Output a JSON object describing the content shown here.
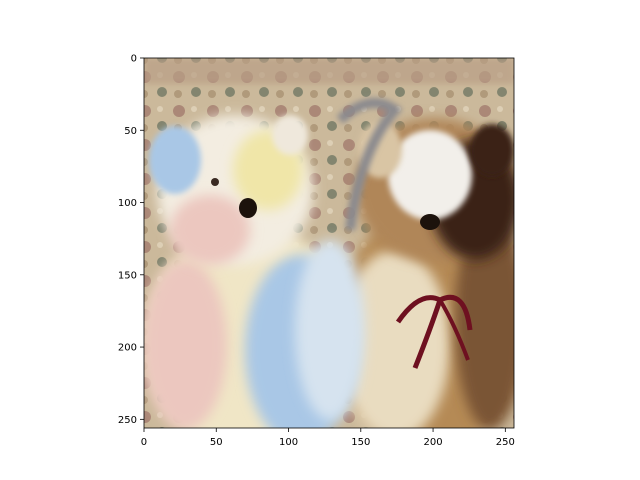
{
  "chart_data": {
    "type": "image",
    "title": "",
    "xlabel": "",
    "ylabel": "",
    "xlim": [
      0,
      256
    ],
    "ylim": [
      256,
      0
    ],
    "x_ticks": [
      {
        "value": 0,
        "label": "0"
      },
      {
        "value": 50,
        "label": "50"
      },
      {
        "value": 100,
        "label": "100"
      },
      {
        "value": 150,
        "label": "150"
      },
      {
        "value": 200,
        "label": "200"
      },
      {
        "value": 250,
        "label": "250"
      }
    ],
    "y_ticks": [
      {
        "value": 0,
        "label": "0"
      },
      {
        "value": 50,
        "label": "50"
      },
      {
        "value": 100,
        "label": "100"
      },
      {
        "value": 150,
        "label": "150"
      },
      {
        "value": 200,
        "label": "200"
      },
      {
        "value": 250,
        "label": "250"
      }
    ],
    "grid": false,
    "legend": "none",
    "image_content": {
      "subject": "two-teddy-bears",
      "colors": {
        "pastel_bear_white": "#f3ede1",
        "pastel_bear_blue": "#a9c7e6",
        "pastel_bear_yellow": "#f0e6a8",
        "pastel_bear_pink": "#ecc7bf",
        "brown_bear_white": "#f2efea",
        "brown_bear_dark": "#3a2418",
        "brown_bear_tan": "#b58a55",
        "ribbon": "#6e1020",
        "background_tapestry": "#c9b79a"
      }
    }
  }
}
